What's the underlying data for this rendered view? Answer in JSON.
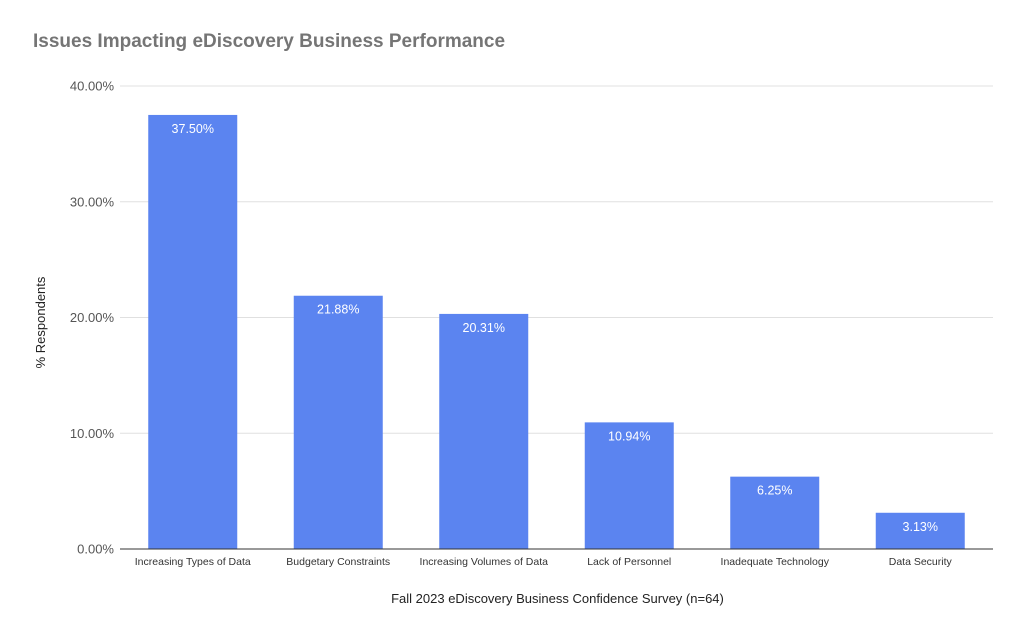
{
  "chart_data": {
    "type": "bar",
    "title": "Issues Impacting eDiscovery Business Performance",
    "xlabel": "Fall 2023 eDiscovery Business Confidence Survey (n=64)",
    "ylabel": "% Respondents",
    "ylim": [
      0,
      40
    ],
    "yticks": [
      "0.00%",
      "10.00%",
      "20.00%",
      "30.00%",
      "40.00%"
    ],
    "grid": true,
    "legend": "none",
    "categories": [
      "Increasing Types of Data",
      "Budgetary Constraints",
      "Increasing Volumes of Data",
      "Lack of Personnel",
      "Inadequate Technology",
      "Data Security"
    ],
    "values": [
      37.5,
      21.88,
      20.31,
      10.94,
      6.25,
      3.13
    ],
    "value_labels": [
      "37.50%",
      "21.88%",
      "20.31%",
      "10.94%",
      "6.25%",
      "3.13%"
    ],
    "bar_color": "#5b84f0",
    "grid_color": "#e0e0e0",
    "axis_color": "#333333"
  }
}
